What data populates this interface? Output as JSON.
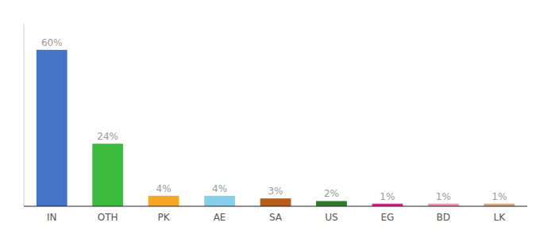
{
  "chart_data": {
    "type": "bar",
    "categories": [
      "IN",
      "OTH",
      "PK",
      "AE",
      "SA",
      "US",
      "EG",
      "BD",
      "LK"
    ],
    "values": [
      60,
      24,
      4,
      4,
      3,
      2,
      1,
      1,
      1
    ],
    "value_labels": [
      "60%",
      "24%",
      "4%",
      "4%",
      "3%",
      "2%",
      "1%",
      "1%",
      "1%"
    ],
    "colors": [
      "#4472c4",
      "#3dbb3d",
      "#f5a623",
      "#87ceeb",
      "#b85c1a",
      "#2d7a2d",
      "#e91e8c",
      "#f48fb1",
      "#d4a57a"
    ],
    "ylim": [
      0,
      70
    ],
    "yticks": [],
    "grid": false,
    "data_labels": true,
    "tick_labels": "x"
  }
}
